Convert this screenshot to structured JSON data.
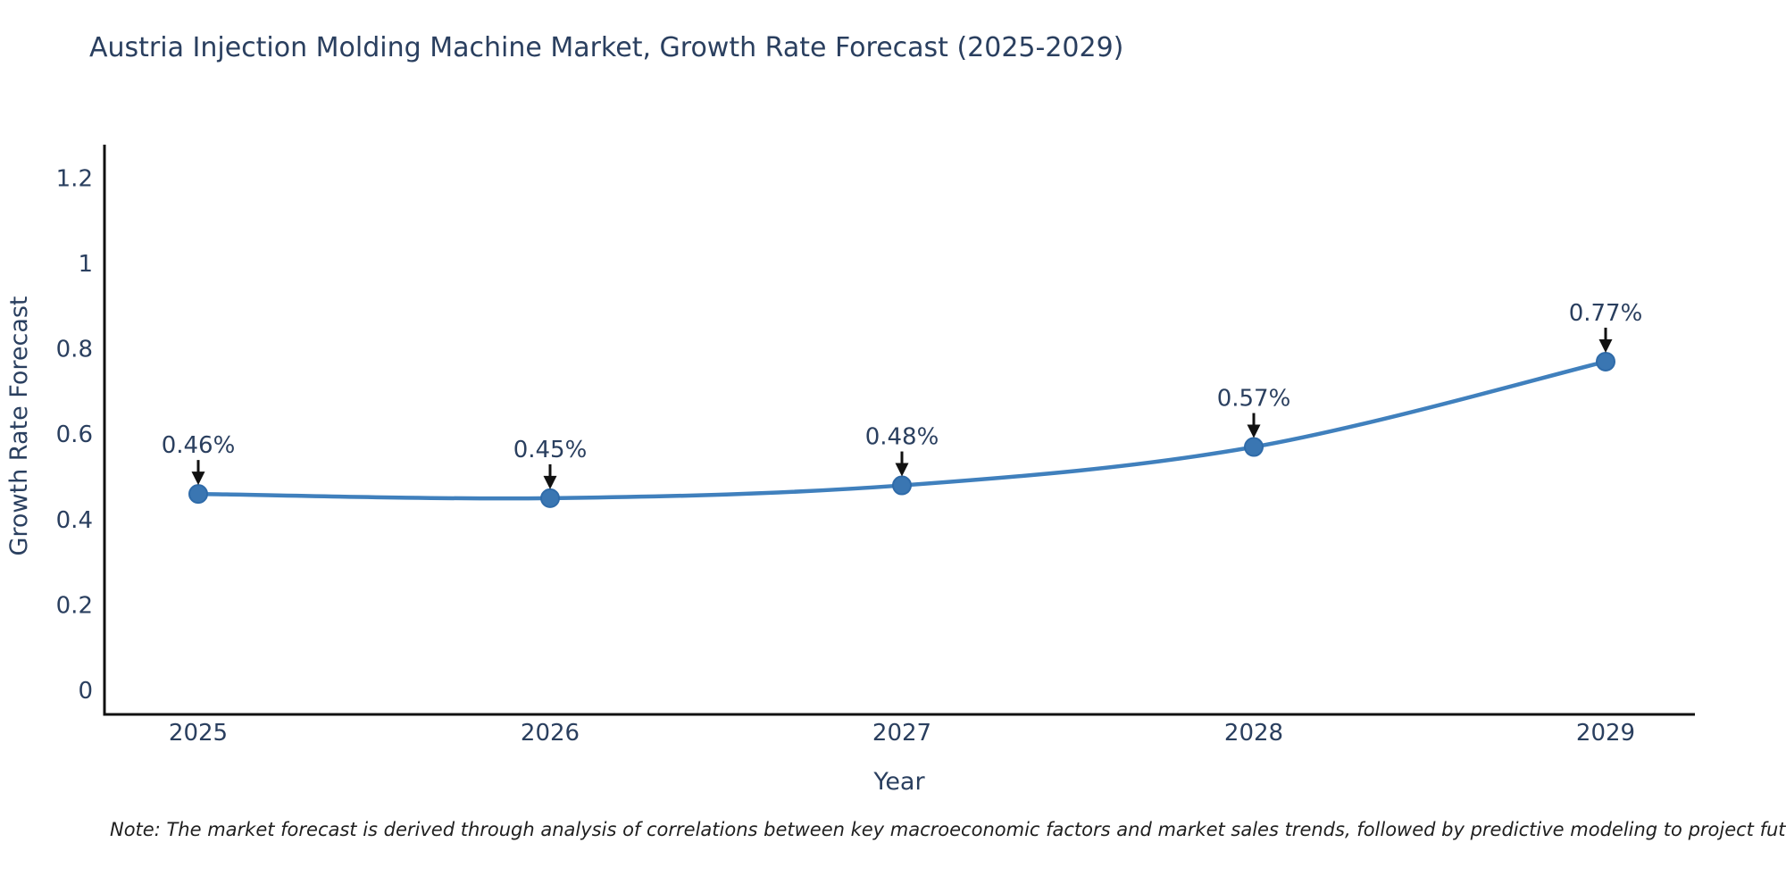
{
  "page": {
    "background": "#ffffff"
  },
  "chart_data": {
    "type": "line",
    "title": "Austria Injection Molding Machine Market, Growth Rate Forecast (2025-2029)",
    "xlabel": "Year",
    "ylabel": "Growth Rate Forecast",
    "categories": [
      "2025",
      "2026",
      "2027",
      "2028",
      "2029"
    ],
    "series": [
      {
        "name": "Growth Rate Forecast",
        "values": [
          0.46,
          0.45,
          0.48,
          0.57,
          0.77
        ],
        "point_labels": [
          "0.46%",
          "0.45%",
          "0.48%",
          "0.57%",
          "0.77%"
        ]
      }
    ],
    "y_ticks": [
      0,
      0.2,
      0.4,
      0.6,
      0.8,
      1,
      1.2
    ],
    "y_tick_labels": [
      "0",
      "0.2",
      "0.4",
      "0.6",
      "0.8",
      "1",
      "1.2"
    ],
    "ylim": [
      -0.06,
      1.27
    ],
    "grid": false,
    "legend_position": "none",
    "line_shape": "spline",
    "colors": {
      "line": "#4080bd",
      "marker_fill": "#3a76b2",
      "marker_edge": "#2f6ba9",
      "axis_line": "#111111",
      "text": "#2a3f5f",
      "annotation_text": "#2a3f5f",
      "annotation_arrow": "#111111"
    }
  },
  "note": {
    "text": "Note: The market forecast is derived through analysis of correlations between key macroeconomic factors and market sales trends, followed by predictive modeling to project future sales"
  }
}
